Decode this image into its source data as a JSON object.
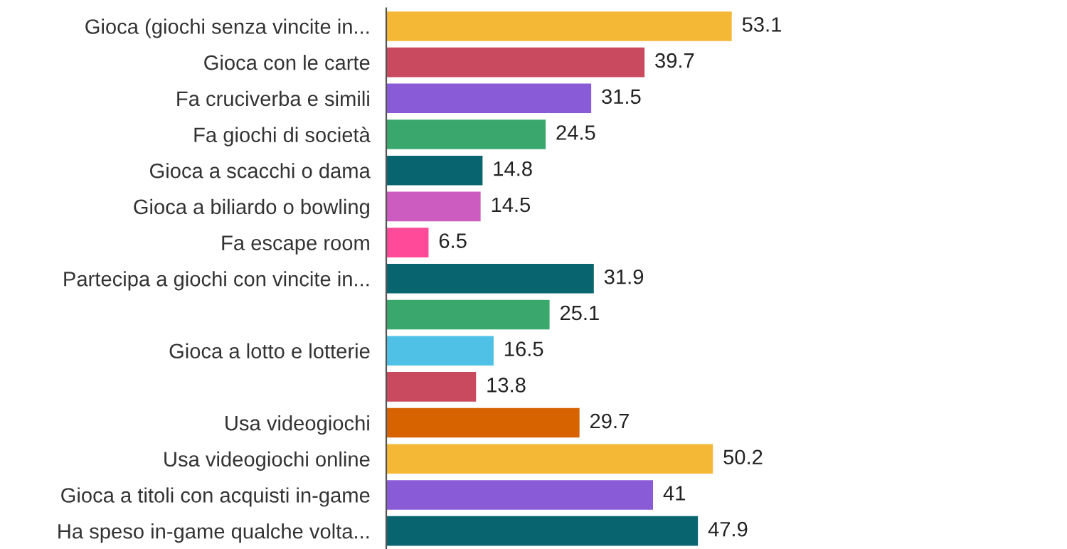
{
  "chart_data": {
    "type": "bar",
    "orientation": "horizontal",
    "data_labels": true,
    "categories": [
      "Gioca (giochi senza vincite in...",
      "Gioca con le carte",
      "Fa cruciverba e simili",
      "Fa giochi di società",
      "Gioca a scacchi o dama",
      "Gioca a biliardo o bowling",
      "Fa escape room",
      "Partecipa a giochi con vincite in...",
      null,
      "Gioca a lotto e lotterie",
      null,
      "Usa videogiochi",
      "Usa videogiochi online",
      "Gioca a titoli con acquisti in-game",
      "Ha speso in-game qualche volta..."
    ],
    "values": [
      53.1,
      39.7,
      31.5,
      24.5,
      14.8,
      14.5,
      6.5,
      31.9,
      25.1,
      16.5,
      13.8,
      29.7,
      50.2,
      41,
      47.9
    ],
    "colors": [
      "#f4b836",
      "#c9495e",
      "#8a5bd6",
      "#3aa86c",
      "#08656f",
      "#cc5cbf",
      "#fe4a98",
      "#08656f",
      "#3aa86c",
      "#50c1e6",
      "#c9495e",
      "#d66300",
      "#f4b836",
      "#8a5bd6",
      "#08656f"
    ]
  }
}
